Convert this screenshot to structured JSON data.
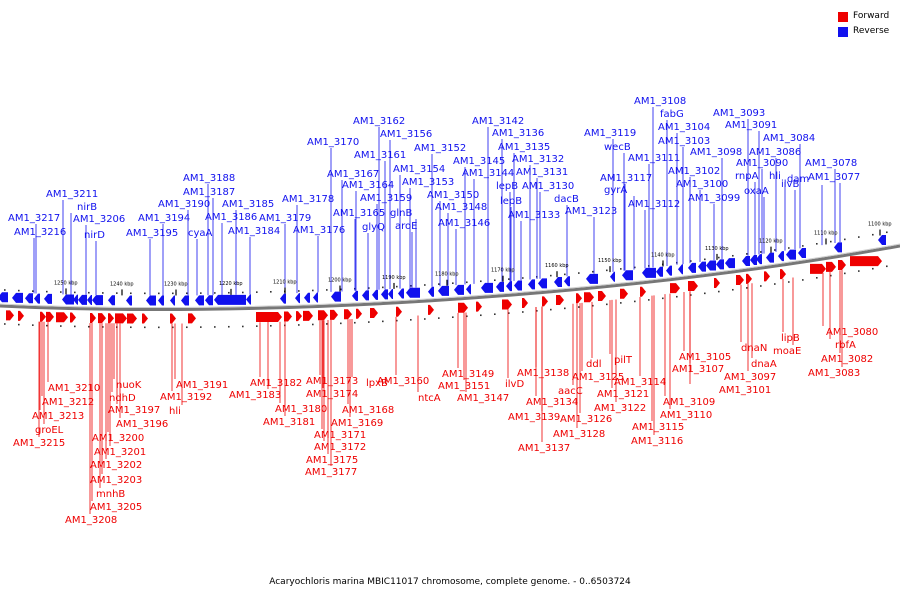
{
  "legend": {
    "forward": {
      "label": "Forward",
      "color": "#ee0000"
    },
    "reverse": {
      "label": "Reverse",
      "color": "#1111ee"
    }
  },
  "caption": "Acaryochloris marina MBIC11017 chromosome, complete genome. - 0..6503724",
  "kbp_ticks": [
    "1250 kbp",
    "1240 kbp",
    "1230 kbp",
    "1220 kbp",
    "1210 kbp",
    "1200 kbp",
    "1190 kbp",
    "1180 kbp",
    "1170 kbp",
    "1160 kbp",
    "1150 kbp",
    "1140 kbp",
    "1130 kbp",
    "1120 kbp",
    "1110 kbp",
    "1100 kbp"
  ],
  "reverse_labels": [
    "AM1_3217",
    "AM1_3216",
    "AM1_3211",
    "nirB",
    "AM1_3206",
    "nirD",
    "AM1_3195",
    "AM1_3194",
    "AM1_3190",
    "cyaA",
    "AM1_3188",
    "AM1_3187",
    "AM1_3186",
    "AM1_3185",
    "AM1_3184",
    "AM1_3179",
    "AM1_3178",
    "AM1_3176",
    "AM1_3170",
    "AM1_3167",
    "AM1_3165",
    "AM1_3164",
    "glyQ",
    "AM1_3162",
    "AM1_3161",
    "AM1_3159",
    "AM1_3156",
    "AM1_3154",
    "AM1_3153",
    "glnB",
    "aroE",
    "AM1_3152",
    "AM1_3150",
    "AM1_3148",
    "AM1_3146",
    "AM1_3145",
    "AM1_3144",
    "AM1_3142",
    "AM1_3136",
    "AM1_3135",
    "lepB",
    "lepB",
    "AM1_3133",
    "AM1_3132",
    "AM1_3131",
    "AM1_3130",
    "dacB",
    "AM1_3123",
    "AM1_3119",
    "wecB",
    "AM1_3117",
    "gyrA",
    "AM1_3112",
    "AM1_3111",
    "AM1_3108",
    "fabG",
    "AM1_3104",
    "AM1_3103",
    "AM1_3102",
    "AM1_3100",
    "AM1_3099",
    "AM1_3098",
    "AM1_3093",
    "AM1_3091",
    "AM1_3090",
    "rnpA",
    "oxaA",
    "AM1_3086",
    "hli",
    "ilvB",
    "AM1_3084",
    "dam",
    "AM1_3078",
    "AM1_3077"
  ],
  "forward_labels": [
    "AM1_3210",
    "AM1_3212",
    "AM1_3213",
    "groEL",
    "AM1_3215",
    "nuoK",
    "ndhD",
    "AM1_3197",
    "AM1_3196",
    "AM1_3200",
    "AM1_3201",
    "AM1_3202",
    "AM1_3203",
    "mnhB",
    "AM1_3205",
    "AM1_3208",
    "AM1_3191",
    "AM1_3192",
    "hli",
    "AM1_3182",
    "AM1_3183",
    "AM1_3180",
    "AM1_3181",
    "AM1_3173",
    "AM1_3174",
    "AM1_3171",
    "AM1_3172",
    "AM1_3175",
    "AM1_3177",
    "lpxB",
    "AM1_3168",
    "AM1_3169",
    "AM1_3160",
    "ntcA",
    "AM1_3149",
    "AM1_3151",
    "AM1_3147",
    "ilvD",
    "AM1_3138",
    "AM1_3134",
    "AM1_3139",
    "AM1_3137",
    "aacC",
    "AM1_3125",
    "AM1_3126",
    "AM1_3128",
    "ddl",
    "pilT",
    "AM1_3121",
    "AM1_3122",
    "AM1_3114",
    "AM1_3115",
    "AM1_3116",
    "AM1_3109",
    "AM1_3110",
    "AM1_3105",
    "AM1_3107",
    "AM1_3101",
    "dnaN",
    "dnaA",
    "AM1_3097",
    "lipB",
    "moaE",
    "AM1_3080",
    "rbfA",
    "AM1_3082",
    "AM1_3083"
  ]
}
